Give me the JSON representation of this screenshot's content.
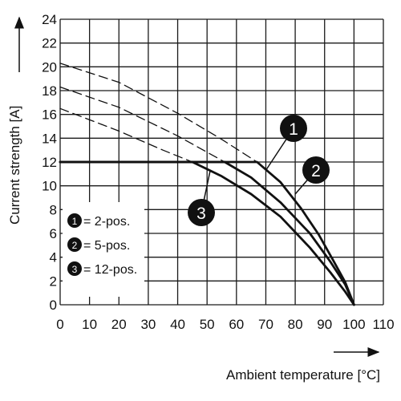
{
  "chart_data": {
    "type": "line",
    "title": "",
    "xlabel": "Ambient temperature [°C]",
    "ylabel": "Current strength [A]",
    "xlim": [
      0,
      110
    ],
    "ylim": [
      0,
      24
    ],
    "x_ticks": [
      "0",
      "10",
      "20",
      "30",
      "40",
      "50",
      "60",
      "70",
      "80",
      "90",
      "100",
      "110"
    ],
    "y_ticks": [
      "0",
      "2",
      "4",
      "6",
      "8",
      "10",
      "12",
      "14",
      "16",
      "18",
      "20",
      "22",
      "24"
    ],
    "grid": true,
    "legend_position": "left",
    "legend": [
      {
        "marker": "1",
        "label": "= 2-pos."
      },
      {
        "marker": "2",
        "label": "= 5-pos."
      },
      {
        "marker": "3",
        "label": "= 12-pos."
      }
    ],
    "series": [
      {
        "marker": "1",
        "style": "solid",
        "points": [
          [
            0,
            12
          ],
          [
            67,
            12
          ],
          [
            75,
            10.3
          ],
          [
            82,
            8.1
          ],
          [
            88,
            5.9
          ],
          [
            93,
            3.7
          ],
          [
            97,
            1.9
          ],
          [
            100,
            0
          ]
        ]
      },
      {
        "marker": "2",
        "style": "solid",
        "points": [
          [
            0,
            12
          ],
          [
            56,
            12
          ],
          [
            65,
            10.7
          ],
          [
            75,
            8.6
          ],
          [
            85,
            6
          ],
          [
            92,
            3.6
          ],
          [
            97,
            1.7
          ],
          [
            100,
            0
          ]
        ]
      },
      {
        "marker": "3",
        "style": "solid",
        "points": [
          [
            0,
            12
          ],
          [
            45,
            12
          ],
          [
            55,
            10.8
          ],
          [
            65,
            9.3
          ],
          [
            75,
            7.4
          ],
          [
            85,
            4.8
          ],
          [
            92,
            2.7
          ],
          [
            97,
            1.1
          ],
          [
            100,
            0
          ]
        ]
      },
      {
        "marker": "1",
        "style": "dashed",
        "points": [
          [
            0,
            20.3
          ],
          [
            20,
            18.7
          ],
          [
            40,
            16.1
          ],
          [
            55,
            13.9
          ],
          [
            67,
            12
          ]
        ]
      },
      {
        "marker": "2",
        "style": "dashed",
        "points": [
          [
            0,
            18.3
          ],
          [
            20,
            16.6
          ],
          [
            40,
            14.2
          ],
          [
            56,
            12
          ]
        ]
      },
      {
        "marker": "3",
        "style": "dashed",
        "points": [
          [
            0,
            16.5
          ],
          [
            20,
            14.6
          ],
          [
            35,
            13
          ],
          [
            45,
            12
          ]
        ]
      }
    ],
    "curve_callouts": [
      {
        "marker": "1",
        "at": [
          70,
          11.3
        ]
      },
      {
        "marker": "2",
        "at": [
          80,
          9.3
        ]
      },
      {
        "marker": "3",
        "at": [
          51,
          11.2
        ]
      }
    ]
  }
}
